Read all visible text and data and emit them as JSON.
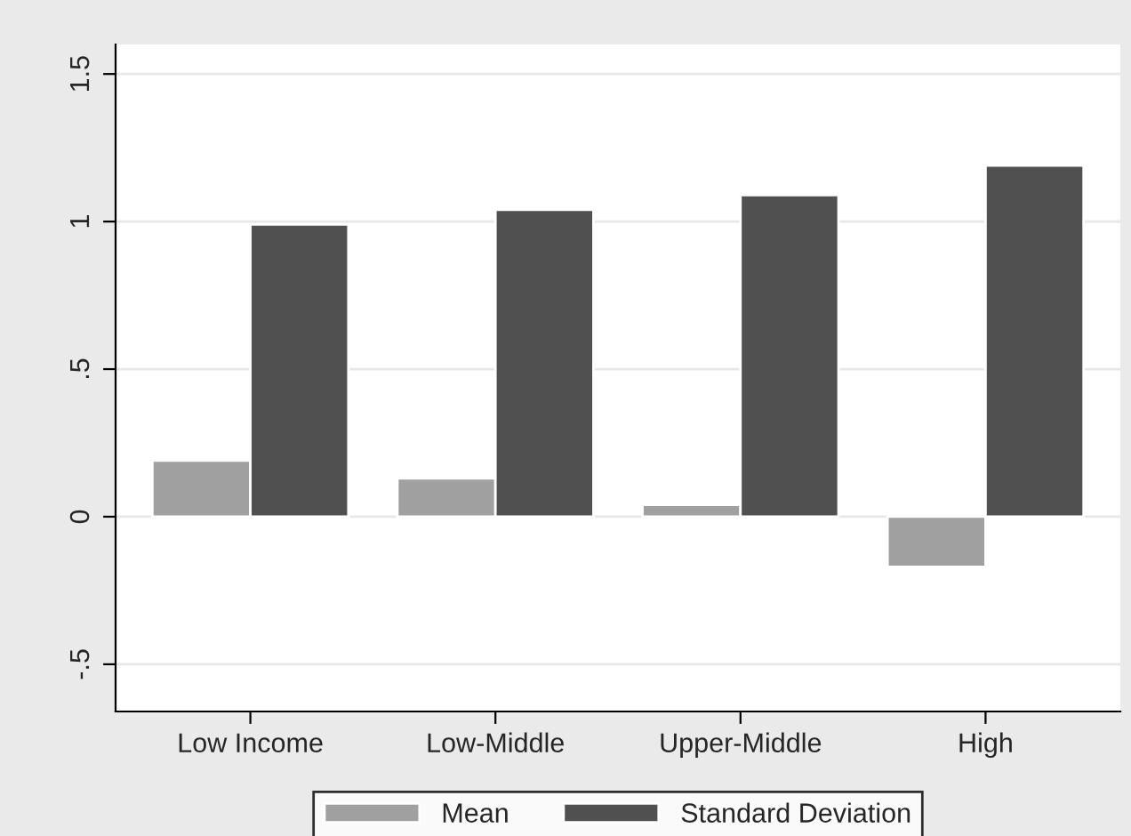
{
  "chart_data": {
    "type": "bar",
    "categories": [
      "Low Income",
      "Low-Middle",
      "Upper-Middle",
      "High"
    ],
    "series": [
      {
        "name": "Mean",
        "color": "#a0a0a0",
        "values": [
          0.19,
          0.13,
          0.04,
          -0.17
        ]
      },
      {
        "name": "Standard Deviation",
        "color": "#505050",
        "values": [
          0.99,
          1.04,
          1.09,
          1.19
        ]
      }
    ],
    "ylim": [
      -0.66,
      1.6
    ],
    "yticks": [
      {
        "value": -0.5,
        "label": "-.5"
      },
      0,
      {
        "value": 0.5,
        "label": ".5"
      },
      1,
      {
        "value": 1.5,
        "label": "1.5"
      }
    ],
    "grid": "y",
    "legend": "bottom"
  }
}
